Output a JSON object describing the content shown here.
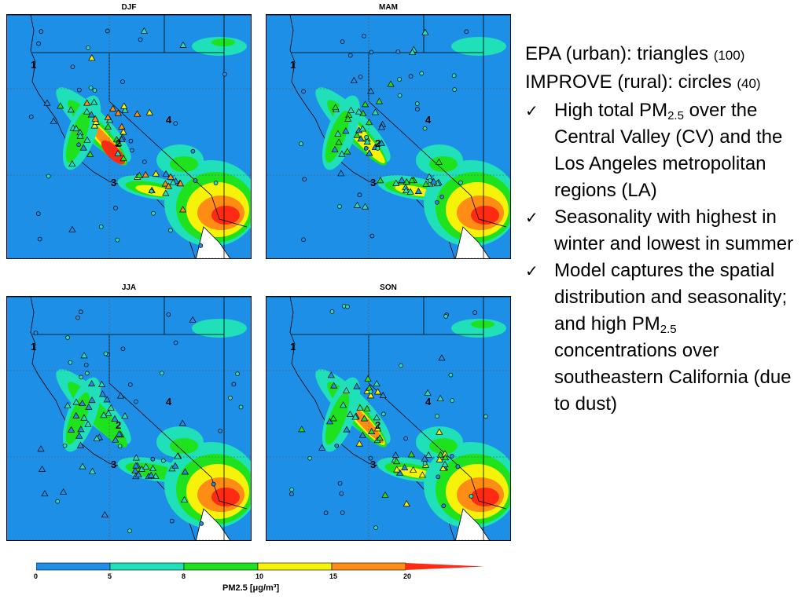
{
  "panels": [
    {
      "title": "DJF",
      "intensity": 3
    },
    {
      "title": "MAM",
      "intensity": 1
    },
    {
      "title": "JJA",
      "intensity": 0
    },
    {
      "title": "SON",
      "intensity": 2
    }
  ],
  "region_labels": [
    "1",
    "2",
    "3",
    "4"
  ],
  "notes": {
    "line1": "EPA (urban): triangles",
    "line1_count": "(100)",
    "line2": "IMPROVE (rural): circles",
    "line2_count": "(40)",
    "bullets": [
      {
        "pre": "High total PM",
        "sub": "2.5",
        "post": " over the Central Valley (CV) and the Los Angeles metropolitan regions (LA)"
      },
      {
        "pre": "Seasonality with highest in winter and lowest in summer",
        "sub": "",
        "post": ""
      },
      {
        "pre": "Model captures the spatial distribution and seasonality; and high PM",
        "sub": "2.5",
        "post": " concentrations over southeastern California (due to dust)"
      }
    ],
    "check_icon": "✓"
  },
  "colorbar": {
    "title": "PM2.5 [μg/m³]",
    "ticks": [
      "0",
      "5",
      "8",
      "10",
      "15",
      "20"
    ],
    "colors": [
      "#1e8fe6",
      "#1fe0b8",
      "#1ee21e",
      "#f6f20a",
      "#ff8c14",
      "#ff2a14"
    ]
  }
}
